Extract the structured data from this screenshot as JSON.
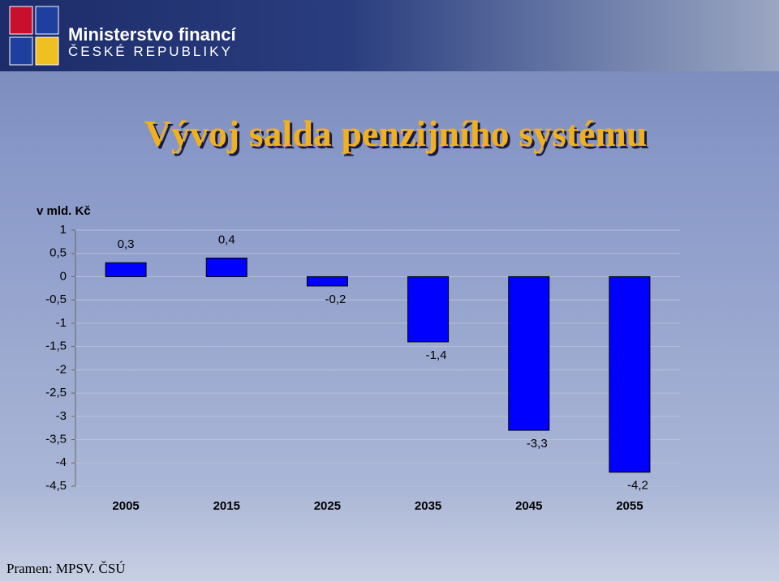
{
  "header": {
    "line1": "Ministerstvo financí",
    "line2": "ČESKÉ REPUBLIKY"
  },
  "source": "Pramen: MPSV. ČSÚ",
  "chart_data": {
    "type": "bar",
    "title": "Vývoj salda penzijního systému",
    "y_label": "v mld. Kč",
    "categories": [
      "2005",
      "2015",
      "2025",
      "2035",
      "2045",
      "2055"
    ],
    "values": [
      0.3,
      0.4,
      -0.2,
      -1.4,
      -3.3,
      -4.2
    ],
    "value_labels": [
      "0,3",
      "0,4",
      "-0,2",
      "-1,4",
      "-3,3",
      "-4,2"
    ],
    "color": "#0000ff",
    "ylim": [
      -4.5,
      1
    ],
    "yticks": [
      1,
      {
        "value": 0.5,
        "label": "0,5"
      },
      0,
      {
        "value": -0.5,
        "label": "-0,5"
      },
      -1,
      {
        "value": -1.5,
        "label": "-1,5"
      },
      -2,
      {
        "value": -2.5,
        "label": "-2,5"
      },
      -3,
      {
        "value": -3.5,
        "label": "-3,5"
      },
      -4,
      {
        "value": -4.5,
        "label": "-4,5"
      }
    ],
    "grid": true
  }
}
